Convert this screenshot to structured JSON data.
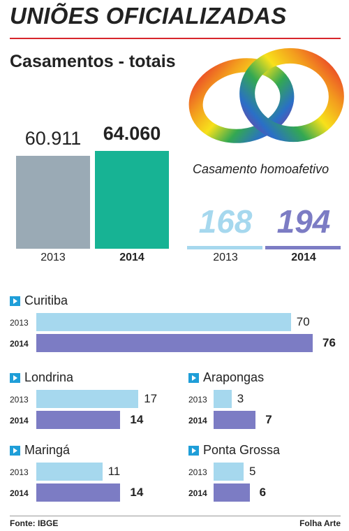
{
  "title": "UNIÕES OFICIALIZADAS",
  "subtitle": "Casamentos - totais",
  "colors": {
    "accent_rule": "#d7262b",
    "total_2013": "#9aaab5",
    "total_2014": "#17b394",
    "light_2013": "#a6d8ee",
    "dark_2014": "#7c7cc4",
    "bullet": "#1f9ed8"
  },
  "rings_icon": "rainbow-wedding-rings-illustration",
  "footer": {
    "source": "Fonte: IBGE",
    "credit": "Folha Arte"
  },
  "chart_data": [
    {
      "type": "bar",
      "title": "Casamentos - totais",
      "categories": [
        "2013",
        "2014"
      ],
      "values": [
        60911,
        64060
      ],
      "value_labels": [
        "60.911",
        "64.060"
      ],
      "ylim": [
        0,
        64060
      ]
    },
    {
      "type": "bar",
      "title": "Casamento homoafetivo",
      "categories": [
        "2013",
        "2014"
      ],
      "values": [
        168,
        194
      ],
      "value_labels": [
        "168",
        "194"
      ]
    },
    {
      "type": "bar",
      "orientation": "horizontal",
      "scale_max": 76,
      "categories": [
        "2013",
        "2014"
      ],
      "cities": [
        {
          "name": "Curitiba",
          "values": [
            70,
            76
          ]
        },
        {
          "name": "Londrina",
          "values": [
            17,
            14
          ]
        },
        {
          "name": "Maringá",
          "values": [
            11,
            14
          ]
        },
        {
          "name": "Arapongas",
          "values": [
            3,
            7
          ]
        },
        {
          "name": "Ponta Grossa",
          "values": [
            5,
            6
          ]
        }
      ]
    }
  ]
}
